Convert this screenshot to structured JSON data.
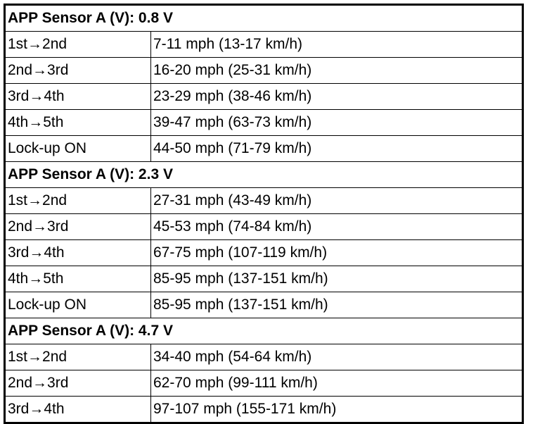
{
  "table": {
    "sections": [
      {
        "header": "APP Sensor A (V): 0.8 V",
        "rows": [
          [
            "1st→2nd",
            "7-11 mph (13-17 km/h)"
          ],
          [
            "2nd→3rd",
            "16-20 mph (25-31 km/h)"
          ],
          [
            "3rd→4th",
            "23-29 mph (38-46 km/h)"
          ],
          [
            "4th→5th",
            "39-47 mph (63-73 km/h)"
          ],
          [
            "Lock-up ON",
            "44-50 mph (71-79 km/h)"
          ]
        ]
      },
      {
        "header": "APP Sensor A (V): 2.3 V",
        "rows": [
          [
            "1st→2nd",
            "27-31 mph (43-49 km/h)"
          ],
          [
            "2nd→3rd",
            "45-53 mph (74-84 km/h)"
          ],
          [
            "3rd→4th",
            "67-75 mph (107-119 km/h)"
          ],
          [
            "4th→5th",
            "85-95 mph (137-151 km/h)"
          ],
          [
            "Lock-up ON",
            "85-95 mph (137-151 km/h)"
          ]
        ]
      },
      {
        "header": "APP Sensor A (V): 4.7 V",
        "rows": [
          [
            "1st→2nd",
            "34-40 mph (54-64 km/h)"
          ],
          [
            "2nd→3rd",
            "62-70 mph (99-111 km/h)"
          ],
          [
            "3rd→4th",
            "97-107 mph (155-171 km/h)"
          ]
        ]
      }
    ]
  }
}
